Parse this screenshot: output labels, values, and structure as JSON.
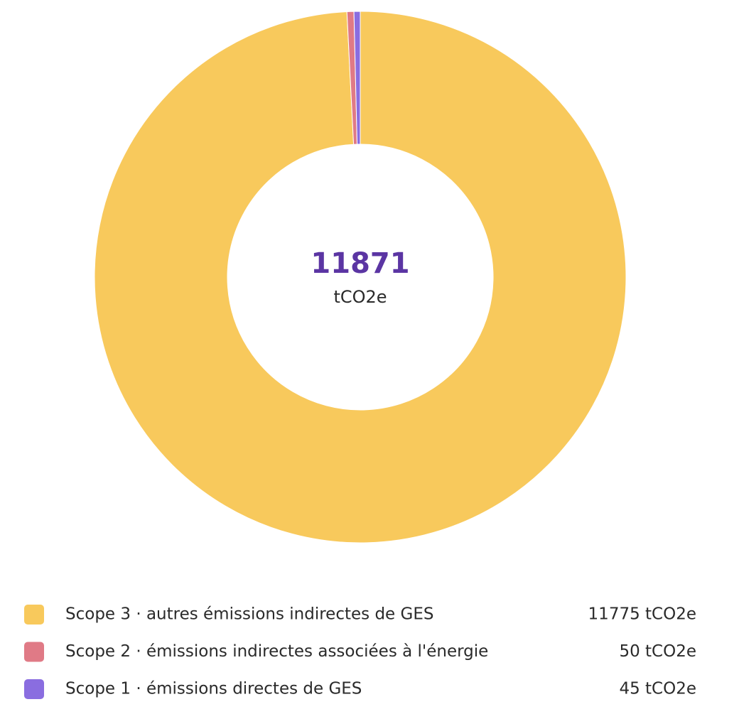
{
  "chart_data": {
    "type": "pie",
    "total": 11871,
    "total_unit": "tCO2e",
    "categories": [
      "Scope 3 · autres émissions indirectes de GES",
      "Scope 2 · émissions indirectes associées à l'énergie",
      "Scope 1 · émissions directes de GES"
    ],
    "values": [
      11775,
      50,
      45
    ],
    "value_labels": [
      "11775 tCO2e",
      "50 tCO2e",
      "45 tCO2e"
    ],
    "colors": [
      "#f8c95c",
      "#e07a86",
      "#8a6de0"
    ]
  }
}
